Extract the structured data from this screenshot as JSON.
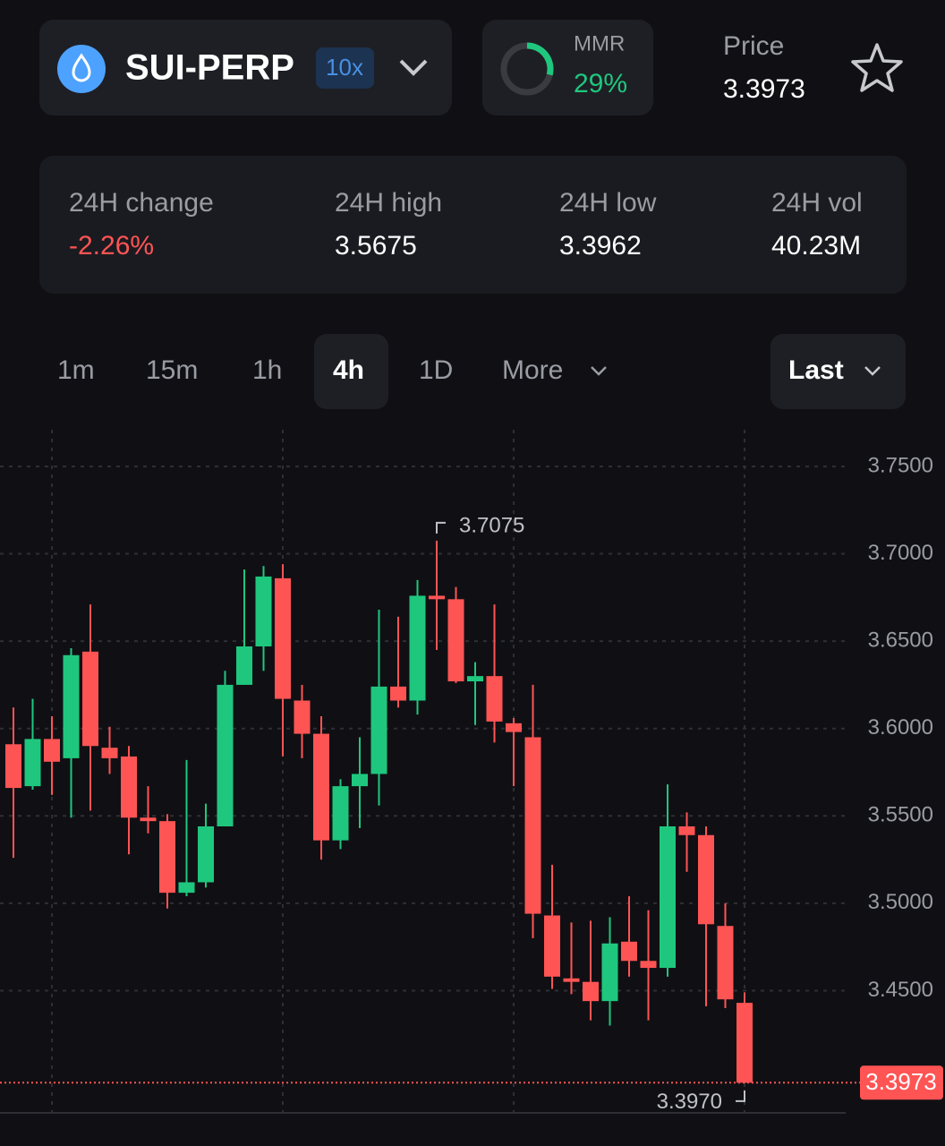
{
  "header": {
    "symbol": "SUI-PERP",
    "leverage": "10x",
    "mmr": {
      "label": "MMR",
      "value": 29,
      "value_label": "29%"
    },
    "price_label": "Price",
    "price": "3.3973"
  },
  "stats": [
    {
      "label": "24H change",
      "value": "-2.26%"
    },
    {
      "label": "24H high",
      "value": "3.5675"
    },
    {
      "label": "24H low",
      "value": "3.3962"
    },
    {
      "label": "24H vol",
      "value": "40.23M"
    }
  ],
  "timeframes": [
    "1m",
    "15m",
    "1h",
    "4h",
    "1D",
    "More"
  ],
  "price_mode": "Last",
  "chart_data": {
    "type": "candlestick",
    "up_color": "#1fc77e",
    "down_color": "#ff5454",
    "open": [
      3.591,
      3.567,
      3.594,
      3.583,
      3.644,
      3.589,
      3.584,
      3.549,
      3.547,
      3.506,
      3.512,
      3.544,
      3.625,
      3.647,
      3.686,
      3.616,
      3.597,
      3.536,
      3.567,
      3.574,
      3.624,
      3.616,
      3.676,
      3.674,
      3.627,
      3.63,
      3.603,
      3.595,
      3.493,
      3.457,
      3.455,
      3.444,
      3.478,
      3.467,
      3.463,
      3.544,
      3.539,
      3.487,
      3.443
    ],
    "high": [
      3.612,
      3.617,
      3.607,
      3.646,
      3.671,
      3.601,
      3.59,
      3.567,
      3.551,
      3.582,
      3.557,
      3.633,
      3.691,
      3.693,
      3.694,
      3.625,
      3.607,
      3.571,
      3.595,
      3.668,
      3.664,
      3.685,
      3.7075,
      3.681,
      3.638,
      3.671,
      3.606,
      3.625,
      3.522,
      3.489,
      3.49,
      3.492,
      3.504,
      3.496,
      3.568,
      3.552,
      3.544,
      3.5,
      3.449
    ],
    "low": [
      3.526,
      3.565,
      3.562,
      3.549,
      3.553,
      3.574,
      3.528,
      3.54,
      3.497,
      3.504,
      3.509,
      3.544,
      3.625,
      3.633,
      3.584,
      3.583,
      3.525,
      3.531,
      3.543,
      3.556,
      3.612,
      3.608,
      3.645,
      3.626,
      3.602,
      3.592,
      3.567,
      3.48,
      3.451,
      3.448,
      3.433,
      3.43,
      3.458,
      3.433,
      3.458,
      3.518,
      3.441,
      3.44,
      3.397
    ],
    "close": [
      3.566,
      3.594,
      3.581,
      3.642,
      3.59,
      3.583,
      3.549,
      3.547,
      3.506,
      3.512,
      3.544,
      3.625,
      3.647,
      3.687,
      3.617,
      3.597,
      3.536,
      3.567,
      3.574,
      3.624,
      3.616,
      3.676,
      3.674,
      3.627,
      3.63,
      3.604,
      3.598,
      3.494,
      3.458,
      3.455,
      3.444,
      3.477,
      3.467,
      3.463,
      3.544,
      3.539,
      3.488,
      3.445,
      3.3973
    ],
    "ylim": [
      3.379,
      3.771
    ],
    "yticks": [
      {
        "value": 3.75,
        "label": "3.7500"
      },
      {
        "value": 3.7,
        "label": "3.7000"
      },
      {
        "value": 3.65,
        "label": "3.6500"
      },
      {
        "value": 3.6,
        "label": "3.6000"
      },
      {
        "value": 3.55,
        "label": "3.5500"
      },
      {
        "value": 3.5,
        "label": "3.5000"
      },
      {
        "value": 3.45,
        "label": "3.4500"
      }
    ],
    "grid": true,
    "high_marker": {
      "value": 3.7075,
      "label": "3.7075"
    },
    "low_marker": {
      "value": 3.397,
      "label": "3.3970"
    },
    "last_price": {
      "value": 3.3973,
      "label": "3.3973"
    }
  }
}
